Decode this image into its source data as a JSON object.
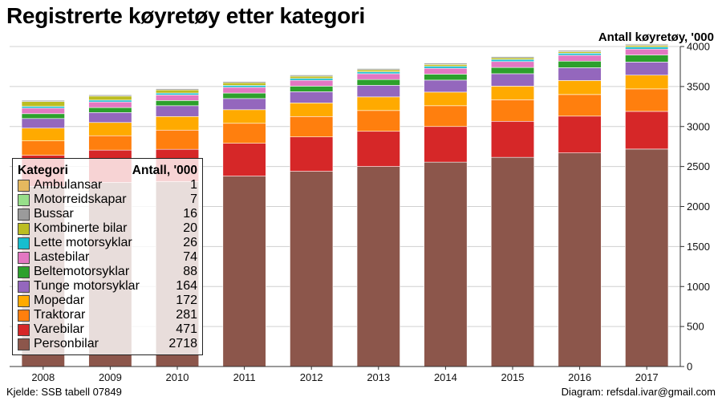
{
  "title": "Registrerte køyretøy etter kategori",
  "source": "Kjelde: SSB tabell 07849",
  "credit": "Diagram: refsdal.ivar@gmail.com",
  "legend": {
    "header_category": "Kategori",
    "header_value": "Antall, '000",
    "items": [
      {
        "label": "Ambulansar",
        "value": "1",
        "color": "#e5b85f"
      },
      {
        "label": "Motorreidskapar",
        "value": "7",
        "color": "#98df8a"
      },
      {
        "label": "Bussar",
        "value": "16",
        "color": "#9b9b9b"
      },
      {
        "label": "Kombinerte bilar",
        "value": "20",
        "color": "#bcbd22"
      },
      {
        "label": "Lette motorsyklar",
        "value": "26",
        "color": "#17becf"
      },
      {
        "label": "Lastebilar",
        "value": "74",
        "color": "#e377c2"
      },
      {
        "label": "Beltemotorsyklar",
        "value": "88",
        "color": "#2ca02c"
      },
      {
        "label": "Tunge motorsyklar",
        "value": "164",
        "color": "#9467bd"
      },
      {
        "label": "Mopedar",
        "value": "172",
        "color": "#ffaa00"
      },
      {
        "label": "Traktorar",
        "value": "281",
        "color": "#ff7f0e"
      },
      {
        "label": "Varebilar",
        "value": "471",
        "color": "#d62728"
      },
      {
        "label": "Personbilar",
        "value": "2718",
        "color": "#8c564b"
      }
    ]
  },
  "chart_data": {
    "type": "bar",
    "stacked": true,
    "title": "Registrerte køyretøy etter kategori",
    "ylabel": "Antall køyretøy, '000",
    "xlabel": "",
    "y_axis_side": "right",
    "ylim": [
      0,
      4000
    ],
    "yticks": [
      0,
      500,
      1000,
      1500,
      2000,
      2500,
      3000,
      3500,
      4000
    ],
    "grid": true,
    "legend_position": "bottom-left",
    "categories": [
      "2008",
      "2009",
      "2010",
      "2011",
      "2012",
      "2013",
      "2014",
      "2015",
      "2016",
      "2017"
    ],
    "series": [
      {
        "name": "Personbilar",
        "color": "#8c564b",
        "values": [
          2250,
          2300,
          2310,
          2380,
          2440,
          2500,
          2555,
          2615,
          2670,
          2718
        ]
      },
      {
        "name": "Varebilar",
        "color": "#d62728",
        "values": [
          390,
          405,
          405,
          410,
          430,
          440,
          445,
          450,
          460,
          471
        ]
      },
      {
        "name": "Traktorar",
        "color": "#ff7f0e",
        "values": [
          180,
          180,
          240,
          250,
          255,
          260,
          260,
          270,
          270,
          281
        ]
      },
      {
        "name": "Mopedar",
        "color": "#ffaa00",
        "values": [
          160,
          165,
          170,
          170,
          170,
          170,
          170,
          170,
          175,
          172
        ]
      },
      {
        "name": "Tunge motorsyklar",
        "color": "#9467bd",
        "values": [
          120,
          125,
          135,
          140,
          140,
          145,
          150,
          155,
          160,
          164
        ]
      },
      {
        "name": "Beltemotorsyklar",
        "color": "#2ca02c",
        "values": [
          60,
          62,
          65,
          68,
          70,
          72,
          75,
          78,
          82,
          88
        ]
      },
      {
        "name": "Lastebilar",
        "color": "#e377c2",
        "values": [
          70,
          70,
          70,
          72,
          72,
          73,
          73,
          74,
          74,
          74
        ]
      },
      {
        "name": "Lette motorsyklar",
        "color": "#17becf",
        "values": [
          22,
          23,
          23,
          24,
          24,
          24,
          25,
          25,
          25,
          26
        ]
      },
      {
        "name": "Kombinerte bilar",
        "color": "#bcbd22",
        "values": [
          60,
          50,
          40,
          33,
          28,
          25,
          23,
          21,
          20,
          20
        ]
      },
      {
        "name": "Bussar",
        "color": "#9b9b9b",
        "values": [
          16,
          16,
          16,
          16,
          16,
          16,
          16,
          16,
          16,
          16
        ]
      },
      {
        "name": "Motorreidskapar",
        "color": "#98df8a",
        "values": [
          6,
          6,
          6,
          6,
          7,
          7,
          7,
          7,
          7,
          7
        ]
      },
      {
        "name": "Ambulansar",
        "color": "#e5b85f",
        "values": [
          1,
          1,
          1,
          1,
          1,
          1,
          1,
          1,
          1,
          1
        ]
      }
    ]
  }
}
